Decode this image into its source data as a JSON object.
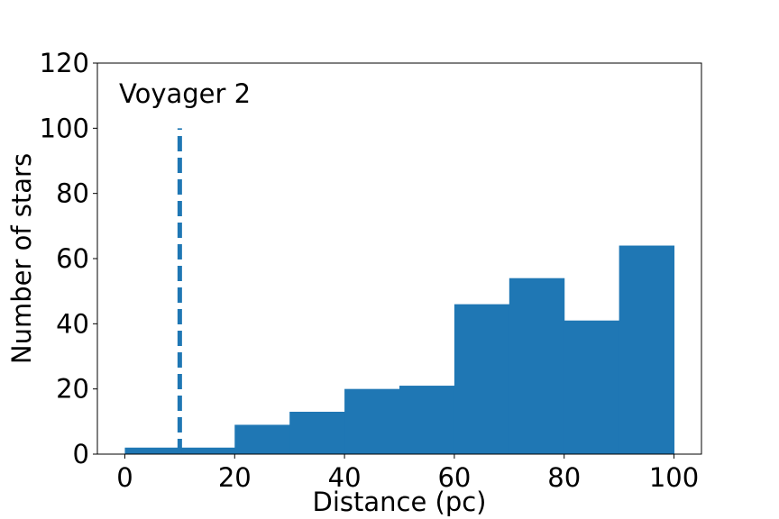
{
  "chart_data": {
    "type": "bar",
    "subtype": "histogram",
    "bin_edges": [
      0,
      10,
      20,
      30,
      40,
      50,
      60,
      70,
      80,
      90,
      100
    ],
    "values": [
      2,
      2,
      9,
      13,
      20,
      21,
      46,
      54,
      41,
      64
    ],
    "xlabel": "Distance (pc)",
    "ylabel": "Number of stars",
    "xlim": [
      -5,
      105
    ],
    "ylim": [
      0,
      120
    ],
    "xticks": [
      0,
      20,
      40,
      60,
      80,
      100
    ],
    "yticks": [
      0,
      20,
      40,
      60,
      80,
      100,
      120
    ],
    "grid": false,
    "bar_color": "#1f77b4",
    "reference_line": {
      "x": 10,
      "y_range": [
        0,
        100
      ],
      "style": "dashed",
      "color": "#1f77b4"
    },
    "annotation": "Voyager 2"
  }
}
